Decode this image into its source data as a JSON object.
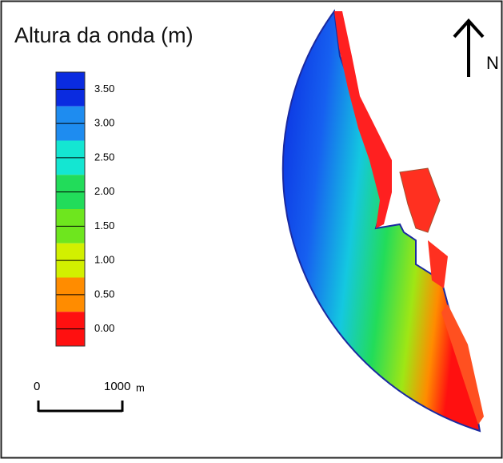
{
  "title": "Altura da onda (m)",
  "north_label": "N",
  "legend": {
    "labels": [
      "3.50",
      "3.00",
      "2.50",
      "2.00",
      "1.50",
      "1.00",
      "0.50",
      "0.00"
    ],
    "colors": [
      "#0a2be0",
      "#1e8cf0",
      "#14e6d2",
      "#22dc5a",
      "#6ee61e",
      "#d2f000",
      "#ff8c00",
      "#ff1010"
    ]
  },
  "scale_bar": {
    "start": "0",
    "end": "1000",
    "unit": "m"
  }
}
